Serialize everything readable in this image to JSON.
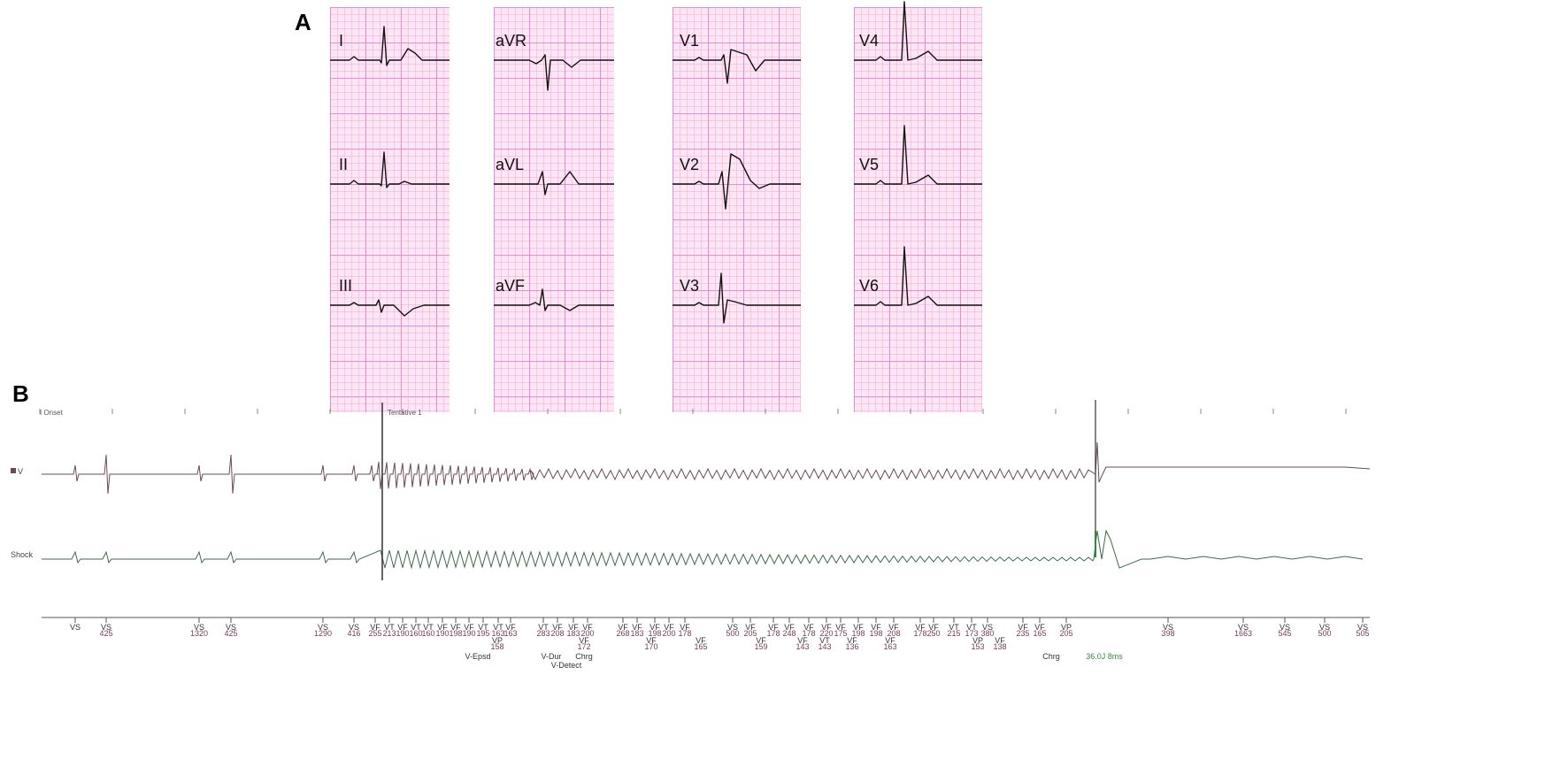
{
  "panel_a": {
    "letter": "A",
    "leads": [
      {
        "id": "I",
        "col": 0,
        "row": 0,
        "morph": "normal"
      },
      {
        "id": "II",
        "col": 0,
        "row": 1,
        "morph": "tall"
      },
      {
        "id": "III",
        "col": 0,
        "row": 2,
        "morph": "neg"
      },
      {
        "id": "aVR",
        "col": 1,
        "row": 0,
        "morph": "avr"
      },
      {
        "id": "aVL",
        "col": 1,
        "row": 1,
        "morph": "avl"
      },
      {
        "id": "aVF",
        "col": 1,
        "row": 2,
        "morph": "avf"
      },
      {
        "id": "V1",
        "col": 2,
        "row": 0,
        "morph": "v1"
      },
      {
        "id": "V2",
        "col": 2,
        "row": 1,
        "morph": "v2"
      },
      {
        "id": "V3",
        "col": 2,
        "row": 2,
        "morph": "v3"
      },
      {
        "id": "V4",
        "col": 3,
        "row": 0,
        "morph": "v4"
      },
      {
        "id": "V5",
        "col": 3,
        "row": 1,
        "morph": "v4"
      },
      {
        "id": "V6",
        "col": 3,
        "row": 2,
        "morph": "v4"
      }
    ]
  },
  "panel_b": {
    "letter": "B",
    "header_marks": [
      "I Onset",
      "Tentative 1"
    ],
    "channel_v_label": "V",
    "channel_shock_label": "Shock",
    "colors": {
      "v_trace": "#6b4a55",
      "shock_trace": "#3f6b4a",
      "marker_text": "#7a3b5a",
      "green_text": "#2e8b3e"
    },
    "markers": [
      {
        "l": "VS",
        "v": ""
      },
      {
        "l": "VS",
        "v": "425"
      },
      {
        "l": "VS",
        "v": "1320"
      },
      {
        "l": "VS",
        "v": "425"
      },
      {
        "l": "VS",
        "v": "1290"
      },
      {
        "l": "VS",
        "v": "416"
      },
      {
        "l": "VF",
        "v": "255"
      },
      {
        "l": "VT",
        "v": "213"
      },
      {
        "l": "VF",
        "v": "190"
      },
      {
        "l": "VT",
        "v": "160"
      },
      {
        "l": "VT",
        "v": "160"
      },
      {
        "l": "VF",
        "v": "190"
      },
      {
        "l": "VF",
        "v": "198"
      },
      {
        "l": "VF",
        "v": "190"
      },
      {
        "l": "VT",
        "v": "195"
      },
      {
        "l": "VT",
        "v": "163"
      },
      {
        "l": "VF",
        "v": "163"
      },
      {
        "l": "VT",
        "v": "283"
      },
      {
        "l": "VF",
        "v": "208"
      },
      {
        "l": "VF",
        "v": "183"
      },
      {
        "l": "VF",
        "v": "200"
      },
      {
        "l": "VF",
        "v": "268"
      },
      {
        "l": "VF",
        "v": "183"
      },
      {
        "l": "VF",
        "v": "198"
      },
      {
        "l": "VF",
        "v": "200"
      },
      {
        "l": "VF",
        "v": "178"
      },
      {
        "l": "VS",
        "v": "500"
      },
      {
        "l": "VF",
        "v": "205"
      },
      {
        "l": "VF",
        "v": "178"
      },
      {
        "l": "VF",
        "v": "248"
      },
      {
        "l": "VF",
        "v": "178"
      },
      {
        "l": "VF",
        "v": "220"
      },
      {
        "l": "VF",
        "v": "175"
      },
      {
        "l": "VF",
        "v": "198"
      },
      {
        "l": "VF",
        "v": "198"
      },
      {
        "l": "VF",
        "v": "208"
      },
      {
        "l": "VF",
        "v": "178"
      },
      {
        "l": "VF",
        "v": "250"
      },
      {
        "l": "VT",
        "v": "215"
      },
      {
        "l": "VT",
        "v": "173"
      },
      {
        "l": "VS",
        "v": "380"
      },
      {
        "l": "VF",
        "v": "235"
      },
      {
        "l": "VF",
        "v": "165"
      },
      {
        "l": "VP",
        "v": "205"
      },
      {
        "l": "VS",
        "v": "398"
      },
      {
        "l": "VS",
        "v": "1663"
      },
      {
        "l": "VS",
        "v": "545"
      },
      {
        "l": "VS",
        "v": "500"
      },
      {
        "l": "VS",
        "v": "505"
      }
    ],
    "lower_markers": [
      {
        "l": "VP",
        "v": "158"
      },
      {
        "l": "VF",
        "v": "172"
      },
      {
        "l": "VF",
        "v": "170"
      },
      {
        "l": "VF",
        "v": "165"
      },
      {
        "l": "VF",
        "v": "159"
      },
      {
        "l": "VF",
        "v": "143"
      },
      {
        "l": "VT",
        "v": "143"
      },
      {
        "l": "VF",
        "v": "136"
      },
      {
        "l": "VF",
        "v": "163"
      },
      {
        "l": "VP",
        "v": "153"
      },
      {
        "l": "VF",
        "v": "138"
      }
    ],
    "annotations": [
      "V-Epsd",
      "V-Dur",
      "Chrg",
      "V-Detect",
      "Chrg"
    ],
    "shock_energy": "36.0J 8ms"
  }
}
